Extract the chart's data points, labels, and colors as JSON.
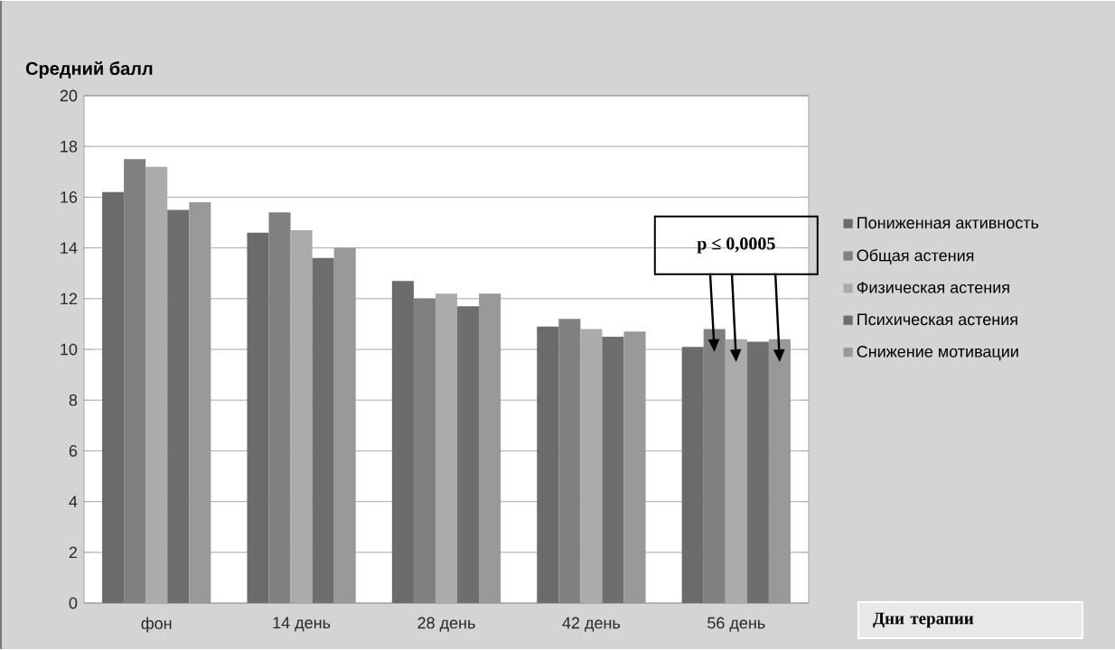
{
  "chart_data": {
    "type": "bar",
    "ylabel": "Средний балл",
    "xlabel": "Дни терапии",
    "categories": [
      "фон",
      "14 день",
      "28 день",
      "42 день",
      "56 день"
    ],
    "series": [
      {
        "name": "Пониженная активность",
        "color": "#6b6b6b",
        "values": [
          16.2,
          14.6,
          12.7,
          10.9,
          10.1
        ]
      },
      {
        "name": "Общая астения",
        "color": "#808080",
        "values": [
          17.5,
          15.4,
          12.0,
          11.2,
          10.8
        ]
      },
      {
        "name": "Физическая астения",
        "color": "#ababab",
        "values": [
          17.2,
          14.7,
          12.2,
          10.8,
          10.4
        ]
      },
      {
        "name": "Психическая астения",
        "color": "#6e6e6e",
        "values": [
          15.5,
          13.6,
          11.7,
          10.5,
          10.3
        ]
      },
      {
        "name": "Снижение мотивации",
        "color": "#999999",
        "values": [
          15.8,
          14.0,
          12.2,
          10.7,
          10.4
        ]
      }
    ],
    "annotations": [
      "p ≤ 0,0005"
    ],
    "ylim": [
      0,
      20
    ],
    "yticks": [
      0,
      2,
      4,
      6,
      8,
      10,
      12,
      14,
      16,
      18,
      20
    ],
    "grid": "y",
    "legend": "right"
  }
}
